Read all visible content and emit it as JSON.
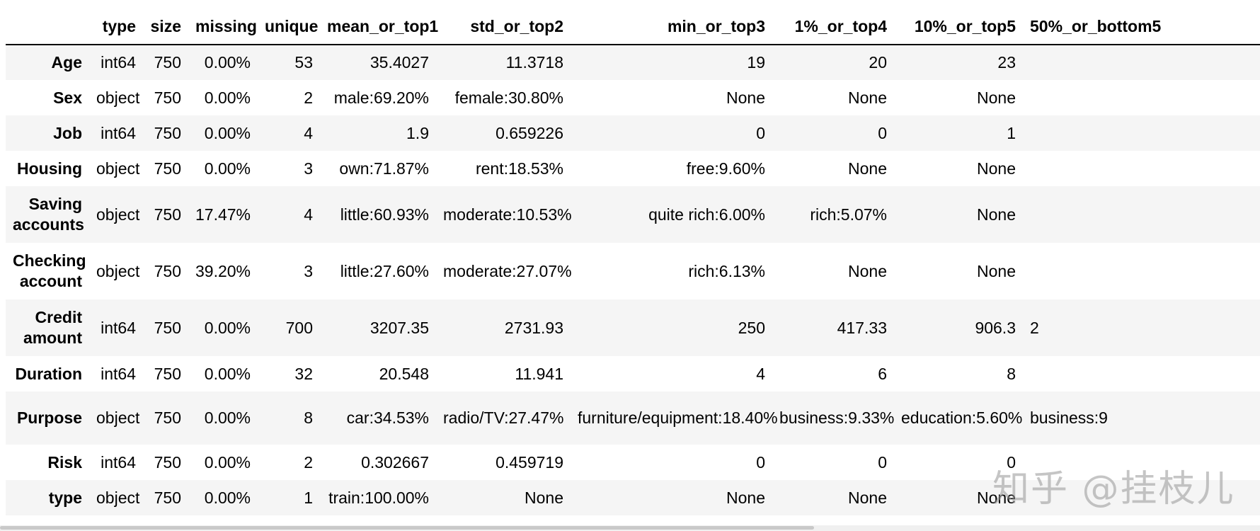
{
  "columns": [
    "type",
    "size",
    "missing",
    "unique",
    "mean_or_top1",
    "std_or_top2",
    "min_or_top3",
    "1%_or_top4",
    "10%_or_top5",
    "50%_or_bottom5"
  ],
  "rows": [
    {
      "label": "Age",
      "cells": [
        "int64",
        "750",
        "0.00%",
        "53",
        "35.4027",
        "11.3718",
        "19",
        "20",
        "23",
        ""
      ]
    },
    {
      "label": "Sex",
      "cells": [
        "object",
        "750",
        "0.00%",
        "2",
        "male:69.20%",
        "female:30.80%",
        "None",
        "None",
        "None",
        ""
      ]
    },
    {
      "label": "Job",
      "cells": [
        "int64",
        "750",
        "0.00%",
        "4",
        "1.9",
        "0.659226",
        "0",
        "0",
        "1",
        ""
      ]
    },
    {
      "label": "Housing",
      "cells": [
        "object",
        "750",
        "0.00%",
        "3",
        "own:71.87%",
        "rent:18.53%",
        "free:9.60%",
        "None",
        "None",
        ""
      ]
    },
    {
      "label": "Saving accounts",
      "cells": [
        "object",
        "750",
        "17.47%",
        "4",
        "little:60.93%",
        "moderate:10.53%",
        "quite rich:6.00%",
        "rich:5.07%",
        "None",
        ""
      ]
    },
    {
      "label": "Checking account",
      "cells": [
        "object",
        "750",
        "39.20%",
        "3",
        "little:27.60%",
        "moderate:27.07%",
        "rich:6.13%",
        "None",
        "None",
        ""
      ]
    },
    {
      "label": "Credit amount",
      "cells": [
        "int64",
        "750",
        "0.00%",
        "700",
        "3207.35",
        "2731.93",
        "250",
        "417.33",
        "906.3",
        "2"
      ]
    },
    {
      "label": "Duration",
      "cells": [
        "int64",
        "750",
        "0.00%",
        "32",
        "20.548",
        "11.941",
        "4",
        "6",
        "8",
        ""
      ]
    },
    {
      "label": "Purpose",
      "cells": [
        "object",
        "750",
        "0.00%",
        "8",
        "car:34.53%",
        "radio/TV:27.47%",
        "furniture/equipment:18.40%",
        "business:9.33%",
        "education:5.60%",
        "business:9"
      ]
    },
    {
      "label": "Risk",
      "cells": [
        "int64",
        "750",
        "0.00%",
        "2",
        "0.302667",
        "0.459719",
        "0",
        "0",
        "0",
        ""
      ]
    },
    {
      "label": "type",
      "cells": [
        "object",
        "750",
        "0.00%",
        "1",
        "train:100.00%",
        "None",
        "None",
        "None",
        "None",
        ""
      ]
    }
  ],
  "watermark": "知乎 @挂枝儿"
}
